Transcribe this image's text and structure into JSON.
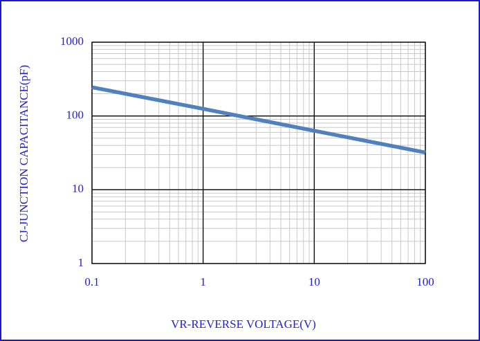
{
  "chart_data": {
    "type": "line",
    "xlabel": "VR-REVERSE VOLTAGE(V)",
    "ylabel": "CJ-JUNCTION CAPACITANCE(pF)",
    "x": [
      0.1,
      1,
      10,
      100
    ],
    "series": [
      {
        "name": "CJ",
        "color": "#4f81bd",
        "values": [
          245,
          125,
          63,
          32
        ]
      }
    ],
    "xlim": [
      0.1,
      100
    ],
    "xticks": [
      0.1,
      1,
      10,
      100
    ],
    "ylim": [
      1,
      1000
    ],
    "yticks": [
      1,
      10,
      100,
      1000
    ],
    "xlog": true,
    "ylog": true,
    "grid": true
  }
}
